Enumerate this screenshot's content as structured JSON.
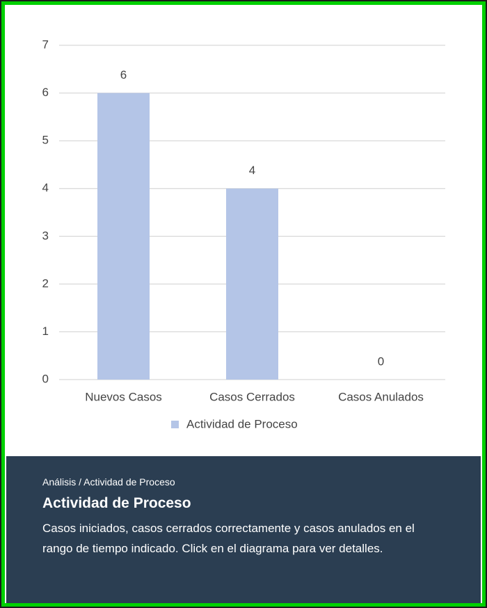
{
  "chart_data": {
    "type": "bar",
    "categories": [
      "Nuevos Casos",
      "Casos Cerrados",
      "Casos Anulados"
    ],
    "series": [
      {
        "name": "Actividad de Proceso",
        "color": "#b4c5e7",
        "values": [
          6,
          4,
          0
        ]
      }
    ],
    "ylim": [
      0,
      7
    ],
    "yticks": [
      0,
      1,
      2,
      3,
      4,
      5,
      6,
      7
    ],
    "grid": true,
    "legend": "bottom"
  },
  "card": {
    "breadcrumb": "Análisis / Actividad de Proceso",
    "title": "Actividad de Proceso",
    "description": "Casos iniciados, casos cerrados correctamente y casos anulados en el rango de tiempo indicado. Click en el diagrama para ver detalles."
  }
}
